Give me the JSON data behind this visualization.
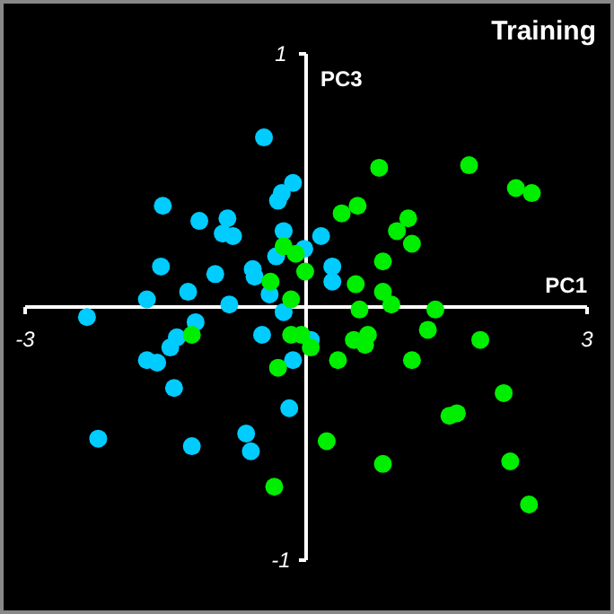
{
  "chart_data": {
    "type": "scatter",
    "title": "Training",
    "xlabel": "PC1",
    "ylabel": "PC3",
    "xlim": [
      -3,
      3
    ],
    "ylim": [
      -1,
      1
    ],
    "xticks": [
      -3,
      3
    ],
    "yticks": [
      -1,
      1
    ],
    "marker": "circle",
    "series": [
      {
        "color": "#00ccff",
        "x": [
          -0.45,
          -0.14,
          -0.26,
          -0.3,
          -1.53,
          -1.14,
          -0.84,
          -0.89,
          -0.78,
          -0.24,
          -0.32,
          -0.02,
          -1.55,
          -0.97,
          -0.57,
          -0.55,
          -0.39,
          -1.26,
          -1.7,
          -0.82,
          -2.34,
          -1.18,
          -0.24,
          0.16,
          0.28,
          0.28,
          -1.38,
          -1.45,
          -0.47,
          -0.14,
          -1.7,
          -1.59,
          -1.41,
          -0.18,
          -2.22,
          -0.64,
          -1.22,
          -0.59,
          0.05
        ],
        "values": [
          0.67,
          0.49,
          0.45,
          0.42,
          0.4,
          0.34,
          0.35,
          0.29,
          0.28,
          0.3,
          0.2,
          0.23,
          0.16,
          0.13,
          0.15,
          0.12,
          0.05,
          0.06,
          0.03,
          0.01,
          -0.04,
          -0.06,
          -0.02,
          0.28,
          0.16,
          0.1,
          -0.12,
          -0.16,
          -0.11,
          -0.21,
          -0.21,
          -0.22,
          -0.32,
          -0.4,
          -0.52,
          -0.5,
          -0.55,
          -0.57,
          -0.13
        ]
      },
      {
        "color": "#00ee00",
        "x": [
          -0.24,
          -0.11,
          -0.01,
          -0.38,
          -0.16,
          0.78,
          1.74,
          2.24,
          2.41,
          0.55,
          0.38,
          1.09,
          0.97,
          1.13,
          0.82,
          0.53,
          0.82,
          0.91,
          0.57,
          1.38,
          -1.22,
          -0.16,
          -0.05,
          -0.3,
          -0.34,
          1.3,
          0.51,
          0.66,
          0.63,
          0.05,
          1.86,
          0.34,
          1.13,
          2.11,
          1.61,
          1.53,
          0.22,
          0.82,
          2.18,
          2.38
        ],
        "values": [
          0.24,
          0.21,
          0.14,
          0.1,
          0.03,
          0.55,
          0.56,
          0.47,
          0.45,
          0.4,
          0.37,
          0.35,
          0.3,
          0.25,
          0.18,
          0.09,
          0.06,
          0.01,
          -0.01,
          -0.01,
          -0.11,
          -0.11,
          -0.11,
          -0.24,
          -0.71,
          -0.09,
          -0.13,
          -0.11,
          -0.15,
          -0.16,
          -0.13,
          -0.21,
          -0.21,
          -0.34,
          -0.42,
          -0.43,
          -0.53,
          -0.62,
          -0.61,
          -0.78
        ]
      }
    ]
  }
}
